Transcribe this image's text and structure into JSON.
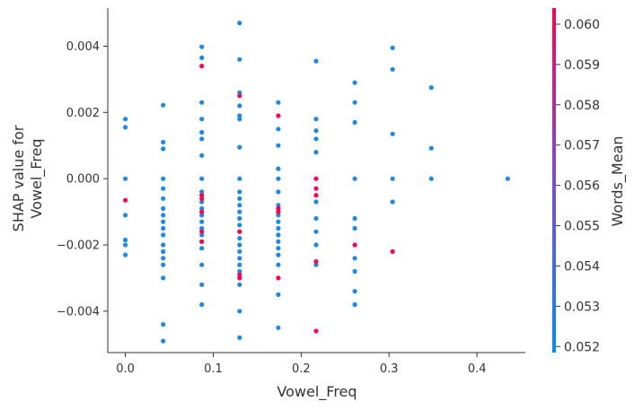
{
  "chart_data": {
    "type": "scatter",
    "xlabel": "Vowel_Freq",
    "ylabel_lines": [
      "SHAP value for",
      "Vowel_Freq"
    ],
    "xlim": [
      -0.02,
      0.455
    ],
    "ylim": [
      -0.00525,
      0.00515
    ],
    "xticks": [
      0.0,
      0.1,
      0.2,
      0.3,
      0.4
    ],
    "xtick_labels": [
      "0.0",
      "0.1",
      "0.2",
      "0.3",
      "0.4"
    ],
    "yticks": [
      0.004,
      0.002,
      0.0,
      -0.002,
      -0.004
    ],
    "ytick_labels": [
      "0.004",
      "0.002",
      "0.000",
      "−0.002",
      "−0.004"
    ],
    "colorbar": {
      "label": "Words_Mean",
      "range": [
        0.05185,
        0.0604
      ],
      "ticks": [
        0.06,
        0.059,
        0.058,
        0.057,
        0.056,
        0.055,
        0.054,
        0.053,
        0.052
      ],
      "tick_labels": [
        "0.060",
        "0.059",
        "0.058",
        "0.057",
        "0.056",
        "0.055",
        "0.054",
        "0.053",
        "0.052"
      ],
      "color_low": "#008bfb",
      "color_high": "#ff0052"
    },
    "series": [
      {
        "color": "#1e88e5",
        "points": [
          [
            0.0,
            0.0018
          ],
          [
            0.0,
            0.00155
          ],
          [
            0.0,
            0.0
          ],
          [
            0.0,
            -0.0011
          ],
          [
            0.0,
            -0.00185
          ],
          [
            0.0,
            -0.002
          ],
          [
            0.0,
            -0.0023
          ],
          [
            0.043,
            0.00222
          ],
          [
            0.043,
            0.0011
          ],
          [
            0.043,
            0.0009
          ],
          [
            0.043,
            0.0
          ],
          [
            0.043,
            -0.0003
          ],
          [
            0.043,
            -0.0006
          ],
          [
            0.043,
            -0.0009
          ],
          [
            0.043,
            -0.0011
          ],
          [
            0.043,
            -0.0013
          ],
          [
            0.043,
            -0.0015
          ],
          [
            0.043,
            -0.0017
          ],
          [
            0.043,
            -0.002
          ],
          [
            0.043,
            -0.0022
          ],
          [
            0.043,
            -0.0024
          ],
          [
            0.043,
            -0.0026
          ],
          [
            0.043,
            -0.003
          ],
          [
            0.043,
            -0.0044
          ],
          [
            0.043,
            -0.0049
          ],
          [
            0.087,
            0.00398
          ],
          [
            0.087,
            0.00365
          ],
          [
            0.087,
            0.0023
          ],
          [
            0.087,
            0.0018
          ],
          [
            0.087,
            0.0014
          ],
          [
            0.087,
            0.0012
          ],
          [
            0.087,
            0.0007
          ],
          [
            0.087,
            0.0
          ],
          [
            0.087,
            -0.0004
          ],
          [
            0.087,
            -0.0007
          ],
          [
            0.087,
            -0.0009
          ],
          [
            0.087,
            -0.0011
          ],
          [
            0.087,
            -0.0013
          ],
          [
            0.087,
            -0.0015
          ],
          [
            0.087,
            -0.0017
          ],
          [
            0.087,
            -0.0019
          ],
          [
            0.087,
            -0.0021
          ],
          [
            0.087,
            -0.0026
          ],
          [
            0.087,
            -0.0032
          ],
          [
            0.087,
            -0.0038
          ],
          [
            0.13,
            0.0047
          ],
          [
            0.13,
            0.0036
          ],
          [
            0.13,
            0.0026
          ],
          [
            0.13,
            0.0022
          ],
          [
            0.13,
            0.0019
          ],
          [
            0.13,
            0.0018
          ],
          [
            0.13,
            0.00095
          ],
          [
            0.13,
            0.0
          ],
          [
            0.13,
            -0.0004
          ],
          [
            0.13,
            -0.0006
          ],
          [
            0.13,
            -0.0008
          ],
          [
            0.13,
            -0.001
          ],
          [
            0.13,
            -0.0012
          ],
          [
            0.13,
            -0.0014
          ],
          [
            0.13,
            -0.0016
          ],
          [
            0.13,
            -0.0018
          ],
          [
            0.13,
            -0.002
          ],
          [
            0.13,
            -0.0022
          ],
          [
            0.13,
            -0.0024
          ],
          [
            0.13,
            -0.0026
          ],
          [
            0.13,
            -0.0028
          ],
          [
            0.13,
            -0.003
          ],
          [
            0.13,
            -0.0032
          ],
          [
            0.13,
            -0.004
          ],
          [
            0.13,
            -0.0048
          ],
          [
            0.174,
            0.0023
          ],
          [
            0.174,
            0.0015
          ],
          [
            0.174,
            0.001
          ],
          [
            0.174,
            0.0003
          ],
          [
            0.174,
            0.0
          ],
          [
            0.174,
            -0.0004
          ],
          [
            0.174,
            -0.0008
          ],
          [
            0.174,
            -0.0011
          ],
          [
            0.174,
            -0.0013
          ],
          [
            0.174,
            -0.0015
          ],
          [
            0.174,
            -0.0017
          ],
          [
            0.174,
            -0.0019
          ],
          [
            0.174,
            -0.0021
          ],
          [
            0.174,
            -0.0023
          ],
          [
            0.174,
            -0.0026
          ],
          [
            0.174,
            -0.0035
          ],
          [
            0.174,
            -0.0045
          ],
          [
            0.217,
            0.00355
          ],
          [
            0.217,
            0.0018
          ],
          [
            0.217,
            0.00145
          ],
          [
            0.217,
            0.0012
          ],
          [
            0.217,
            0.0008
          ],
          [
            0.217,
            0.0
          ],
          [
            0.217,
            -0.0007
          ],
          [
            0.217,
            -0.0012
          ],
          [
            0.217,
            -0.0016
          ],
          [
            0.217,
            -0.002
          ],
          [
            0.217,
            -0.0026
          ],
          [
            0.261,
            0.0029
          ],
          [
            0.261,
            0.0023
          ],
          [
            0.261,
            0.0017
          ],
          [
            0.261,
            0.0
          ],
          [
            0.261,
            -0.0012
          ],
          [
            0.261,
            -0.0015
          ],
          [
            0.261,
            -0.0024
          ],
          [
            0.261,
            -0.0028
          ],
          [
            0.261,
            -0.0034
          ],
          [
            0.261,
            -0.0038
          ],
          [
            0.304,
            0.00395
          ],
          [
            0.304,
            0.0033
          ],
          [
            0.304,
            0.00135
          ],
          [
            0.304,
            0.0
          ],
          [
            0.304,
            -0.0007
          ],
          [
            0.348,
            0.00275
          ],
          [
            0.348,
            0.00092
          ],
          [
            0.348,
            0.0
          ],
          [
            0.435,
            0.0
          ]
        ]
      },
      {
        "color": "#ff0052",
        "points": [
          [
            0.0,
            -0.00065
          ],
          [
            0.087,
            0.0034
          ],
          [
            0.087,
            -0.0005
          ],
          [
            0.087,
            -0.0006
          ],
          [
            0.087,
            -0.001
          ],
          [
            0.087,
            -0.0016
          ],
          [
            0.087,
            -0.0019
          ],
          [
            0.13,
            0.0025
          ],
          [
            0.13,
            -0.0016
          ],
          [
            0.13,
            -0.0029
          ],
          [
            0.13,
            -0.003
          ],
          [
            0.174,
            0.0019
          ],
          [
            0.174,
            -0.0009
          ],
          [
            0.174,
            -0.001
          ],
          [
            0.174,
            -0.003
          ],
          [
            0.217,
            0.0
          ],
          [
            0.217,
            -0.0003
          ],
          [
            0.217,
            -0.0005
          ],
          [
            0.217,
            -0.0025
          ],
          [
            0.217,
            -0.0046
          ],
          [
            0.261,
            -0.002
          ],
          [
            0.304,
            -0.0022
          ]
        ]
      }
    ]
  }
}
